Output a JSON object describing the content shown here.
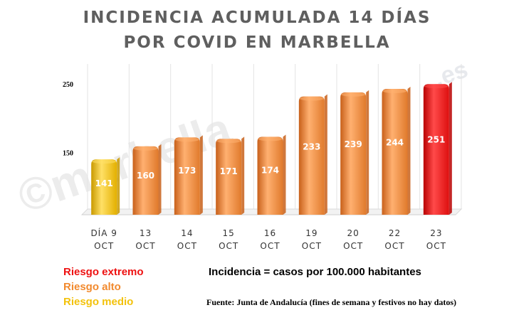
{
  "title_line1": "INCIDENCIA ACUMULADA 14 DÍAS",
  "title_line2": "POR COVID EN MARBELLA",
  "chart_data": {
    "type": "bar",
    "categories": [
      [
        "DÍA 9",
        "OCT"
      ],
      [
        "13",
        "OCT"
      ],
      [
        "14",
        "OCT"
      ],
      [
        "15",
        "OCT"
      ],
      [
        "16",
        "OCT"
      ],
      [
        "19",
        "OCT"
      ],
      [
        "20",
        "OCT"
      ],
      [
        "22",
        "OCT"
      ],
      [
        "23",
        "OCT"
      ]
    ],
    "values": [
      141,
      160,
      173,
      171,
      174,
      233,
      239,
      244,
      251
    ],
    "data_labels": [
      "141",
      "160",
      "173",
      "171",
      "174",
      "233",
      "239",
      "244",
      "251"
    ],
    "risk": [
      "medio",
      "alto",
      "alto",
      "alto",
      "alto",
      "alto",
      "alto",
      "alto",
      "extremo"
    ],
    "y_ticks": [
      150,
      250
    ],
    "ylim": [
      60,
      270
    ],
    "grid": true
  },
  "legend": {
    "extremo": {
      "label": "Riesgo extremo",
      "color": "#ee1111"
    },
    "alto": {
      "label": "Riesgo alto",
      "color": "#f28a2e"
    },
    "medio": {
      "label": "Riesgo medio",
      "color": "#f3c20c"
    }
  },
  "definition": "Incidencia = casos por 100.000 habitantes",
  "source": "Fuente: Junta de Andalucía (fines de semana y festivos no hay datos)",
  "watermark": {
    "text": "©marbella",
    "domain": ".es"
  }
}
